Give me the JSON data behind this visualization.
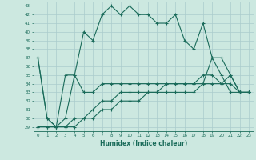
{
  "title": "",
  "xlabel": "Humidex (Indice chaleur)",
  "bg_color": "#cce8e0",
  "grid_color": "#aacccc",
  "line_color": "#1a6b5a",
  "x_values": [
    0,
    1,
    2,
    3,
    4,
    5,
    6,
    7,
    8,
    9,
    10,
    11,
    12,
    13,
    14,
    15,
    16,
    17,
    18,
    19,
    20,
    21,
    22,
    23
  ],
  "series1": [
    37,
    30,
    29,
    35,
    35,
    40,
    39,
    42,
    43,
    42,
    43,
    42,
    42,
    41,
    41,
    42,
    39,
    38,
    41,
    37,
    37,
    35,
    33,
    33
  ],
  "series2": [
    37,
    30,
    29,
    30,
    35,
    33,
    33,
    34,
    34,
    34,
    34,
    34,
    34,
    34,
    34,
    34,
    34,
    34,
    35,
    35,
    34,
    35,
    33,
    33
  ],
  "series3": [
    29,
    29,
    29,
    29,
    30,
    30,
    31,
    32,
    32,
    33,
    33,
    33,
    33,
    33,
    34,
    34,
    34,
    34,
    34,
    34,
    34,
    34,
    33,
    33
  ],
  "series4": [
    29,
    29,
    29,
    29,
    29,
    30,
    30,
    31,
    31,
    32,
    32,
    32,
    33,
    33,
    33,
    33,
    33,
    33,
    34,
    37,
    35,
    33,
    33,
    33
  ],
  "ylim": [
    28.5,
    43.5
  ],
  "xlim": [
    -0.5,
    23.5
  ],
  "yticks": [
    29,
    30,
    31,
    32,
    33,
    34,
    35,
    36,
    37,
    38,
    39,
    40,
    41,
    42,
    43
  ],
  "xticks": [
    0,
    1,
    2,
    3,
    4,
    5,
    6,
    7,
    8,
    9,
    10,
    11,
    12,
    13,
    14,
    15,
    16,
    17,
    18,
    19,
    20,
    21,
    22,
    23
  ]
}
